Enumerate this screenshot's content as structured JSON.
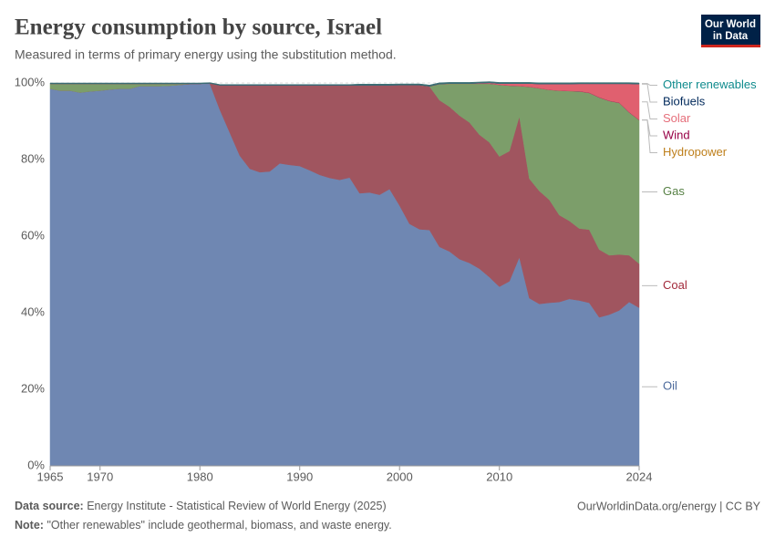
{
  "chart_data": {
    "type": "stacked_area",
    "title": "Energy consumption by source, Israel",
    "subtitle": "Measured in terms of primary energy using the substitution method.",
    "logo": [
      "Our World",
      "in Data"
    ],
    "source_label": "Data source:",
    "source": "Energy Institute - Statistical Review of World Energy (2025)",
    "note_label": "Note:",
    "note": "\"Other renewables\" include geothermal, biomass, and waste energy.",
    "url": "OurWorldinData.org/energy | CC BY",
    "x": [
      1965,
      1966,
      1967,
      1968,
      1969,
      1970,
      1971,
      1972,
      1973,
      1974,
      1975,
      1976,
      1977,
      1978,
      1979,
      1980,
      1981,
      1982,
      1983,
      1984,
      1985,
      1986,
      1987,
      1988,
      1989,
      1990,
      1991,
      1992,
      1993,
      1994,
      1995,
      1996,
      1997,
      1998,
      1999,
      2000,
      2001,
      2002,
      2003,
      2004,
      2005,
      2006,
      2007,
      2008,
      2009,
      2010,
      2011,
      2012,
      2013,
      2014,
      2015,
      2016,
      2017,
      2018,
      2019,
      2020,
      2021,
      2022,
      2023,
      2024
    ],
    "xlim": [
      1965,
      2024
    ],
    "xticks": [
      1965,
      1970,
      1980,
      1990,
      2000,
      2010,
      2024
    ],
    "ylim": [
      0,
      100
    ],
    "yticks": [
      {
        "value": 0,
        "label": "0%"
      },
      {
        "value": 20,
        "label": "20%"
      },
      {
        "value": 40,
        "label": "40%"
      },
      {
        "value": 60,
        "label": "60%"
      },
      {
        "value": 80,
        "label": "80%"
      },
      {
        "value": 100,
        "label": "100%"
      }
    ],
    "grid": true,
    "series": [
      {
        "name": "Oil",
        "color": "#6f87b2",
        "label_color": "#4c6a9c",
        "values": [
          98.5,
          98,
          98,
          97.5,
          97.8,
          98,
          98.3,
          98.5,
          98.5,
          99.2,
          99.2,
          99.2,
          99.3,
          99.5,
          99.7,
          99.8,
          99.8,
          93,
          87,
          81,
          77.6,
          76.7,
          76.9,
          79,
          78.6,
          78.3,
          77.2,
          76,
          75.2,
          74.7,
          75.3,
          71.2,
          71.4,
          70.8,
          72.3,
          68,
          63.2,
          61.8,
          61.6,
          57.2,
          56,
          54,
          53,
          51.5,
          49.3,
          46.8,
          48.2,
          54.5,
          43.8,
          42.3,
          42.6,
          42.8,
          43.6,
          43.2,
          42.6,
          38.8,
          39.5,
          40.6,
          42.8,
          41.3
        ]
      },
      {
        "name": "Coal",
        "color": "#a0555f",
        "label_color": "#a2293a",
        "values": [
          0,
          0,
          0,
          0,
          0,
          0,
          0,
          0,
          0,
          0,
          0,
          0,
          0,
          0,
          0,
          0,
          0.1,
          6.4,
          12.4,
          18.4,
          21.8,
          22.7,
          22.5,
          20.4,
          20.8,
          21.1,
          22.2,
          23.4,
          24.2,
          24.7,
          24.1,
          28.2,
          28,
          28.6,
          27.1,
          31.4,
          36.2,
          37.6,
          37.5,
          38.3,
          37.8,
          37.5,
          36.7,
          35,
          35.2,
          34,
          34,
          36.8,
          31.2,
          29.5,
          26.9,
          22.7,
          20.4,
          18.8,
          19.1,
          17.7,
          15.5,
          14.6,
          12.2,
          11.5
        ]
      },
      {
        "name": "Gas",
        "color": "#7c9e6a",
        "label_color": "#578145",
        "values": [
          1.3,
          1.8,
          1.8,
          2.3,
          2,
          1.8,
          1.5,
          1.3,
          1.3,
          0.6,
          0.6,
          0.6,
          0.5,
          0.3,
          0.1,
          0,
          0,
          0,
          0,
          0,
          0,
          0,
          0,
          0,
          0,
          0,
          0,
          0,
          0,
          0,
          0,
          0,
          0,
          0,
          0,
          0,
          0,
          0,
          0,
          4.2,
          6,
          8.3,
          10.1,
          13.3,
          15.3,
          18.7,
          17.1,
          7.9,
          24,
          26.8,
          28.7,
          32.5,
          33.9,
          35.8,
          35.7,
          39.7,
          40.3,
          39.6,
          37.3,
          37.5
        ]
      },
      {
        "name": "Hydropower",
        "color": "#c79a3c",
        "label_color": "#be7f1b",
        "values": [
          0,
          0,
          0,
          0,
          0,
          0,
          0,
          0,
          0,
          0,
          0,
          0,
          0,
          0,
          0,
          0,
          0,
          0,
          0,
          0,
          0,
          0,
          0,
          0,
          0,
          0,
          0,
          0,
          0,
          0,
          0,
          0,
          0,
          0,
          0,
          0,
          0,
          0,
          0,
          0,
          0,
          0,
          0,
          0,
          0,
          0,
          0,
          0,
          0,
          0,
          0,
          0,
          0,
          0,
          0,
          0,
          0,
          0,
          0,
          0
        ]
      },
      {
        "name": "Wind",
        "color": "#9a2a6a",
        "label_color": "#970046",
        "values": [
          0,
          0,
          0,
          0,
          0,
          0,
          0,
          0,
          0,
          0,
          0,
          0,
          0,
          0,
          0,
          0,
          0,
          0,
          0,
          0,
          0,
          0,
          0,
          0,
          0,
          0,
          0,
          0,
          0,
          0,
          0,
          0,
          0,
          0,
          0,
          0.05,
          0.05,
          0.05,
          0.05,
          0.05,
          0.05,
          0.05,
          0.05,
          0.05,
          0.05,
          0.05,
          0.05,
          0.05,
          0.05,
          0.05,
          0.05,
          0.05,
          0.05,
          0.1,
          0.1,
          0.1,
          0.1,
          0.1,
          0.1,
          0.1
        ]
      },
      {
        "name": "Solar",
        "color": "#e0606f",
        "label_color": "#e56e7a",
        "values": [
          0,
          0,
          0,
          0,
          0,
          0,
          0,
          0,
          0,
          0,
          0,
          0,
          0,
          0,
          0,
          0,
          0,
          0,
          0,
          0,
          0,
          0,
          0,
          0,
          0,
          0,
          0,
          0,
          0,
          0,
          0,
          0,
          0,
          0,
          0,
          0,
          0,
          0,
          0,
          0,
          0,
          0,
          0,
          0.1,
          0.2,
          0.3,
          0.5,
          0.6,
          0.8,
          1.1,
          1.5,
          1.7,
          1.8,
          1.9,
          2.3,
          3.5,
          4.4,
          4.9,
          7.4,
          9.3
        ]
      },
      {
        "name": "Biofuels",
        "color": "#2a4a78",
        "label_color": "#00295b",
        "values": [
          0,
          0,
          0,
          0,
          0,
          0,
          0,
          0,
          0,
          0,
          0,
          0,
          0,
          0,
          0,
          0,
          0,
          0,
          0,
          0,
          0,
          0,
          0,
          0,
          0,
          0,
          0,
          0,
          0,
          0,
          0,
          0,
          0,
          0,
          0,
          0,
          0,
          0,
          0,
          0,
          0,
          0,
          0,
          0,
          0,
          0,
          0,
          0,
          0,
          0,
          0,
          0,
          0,
          0,
          0,
          0,
          0,
          0,
          0,
          0
        ]
      },
      {
        "name": "Other renewables",
        "color": "#3a6f74",
        "label_color": "#0f8b8d",
        "values": [
          0.2,
          0.2,
          0.2,
          0.2,
          0.2,
          0.2,
          0.2,
          0.2,
          0.2,
          0.2,
          0.2,
          0.2,
          0.2,
          0.2,
          0.2,
          0.2,
          0.2,
          0.2,
          0.2,
          0.2,
          0.2,
          0.2,
          0.2,
          0.2,
          0.2,
          0.2,
          0.2,
          0.2,
          0.2,
          0.2,
          0.2,
          0.3,
          0.3,
          0.3,
          0.3,
          0.3,
          0.3,
          0.3,
          0.3,
          0.3,
          0.3,
          0.3,
          0.3,
          0.3,
          0.3,
          0.3,
          0.3,
          0.3,
          0.3,
          0.3,
          0.3,
          0.3,
          0.3,
          0.3,
          0.3,
          0.3,
          0.3,
          0.3,
          0.3,
          0.3
        ]
      }
    ]
  }
}
